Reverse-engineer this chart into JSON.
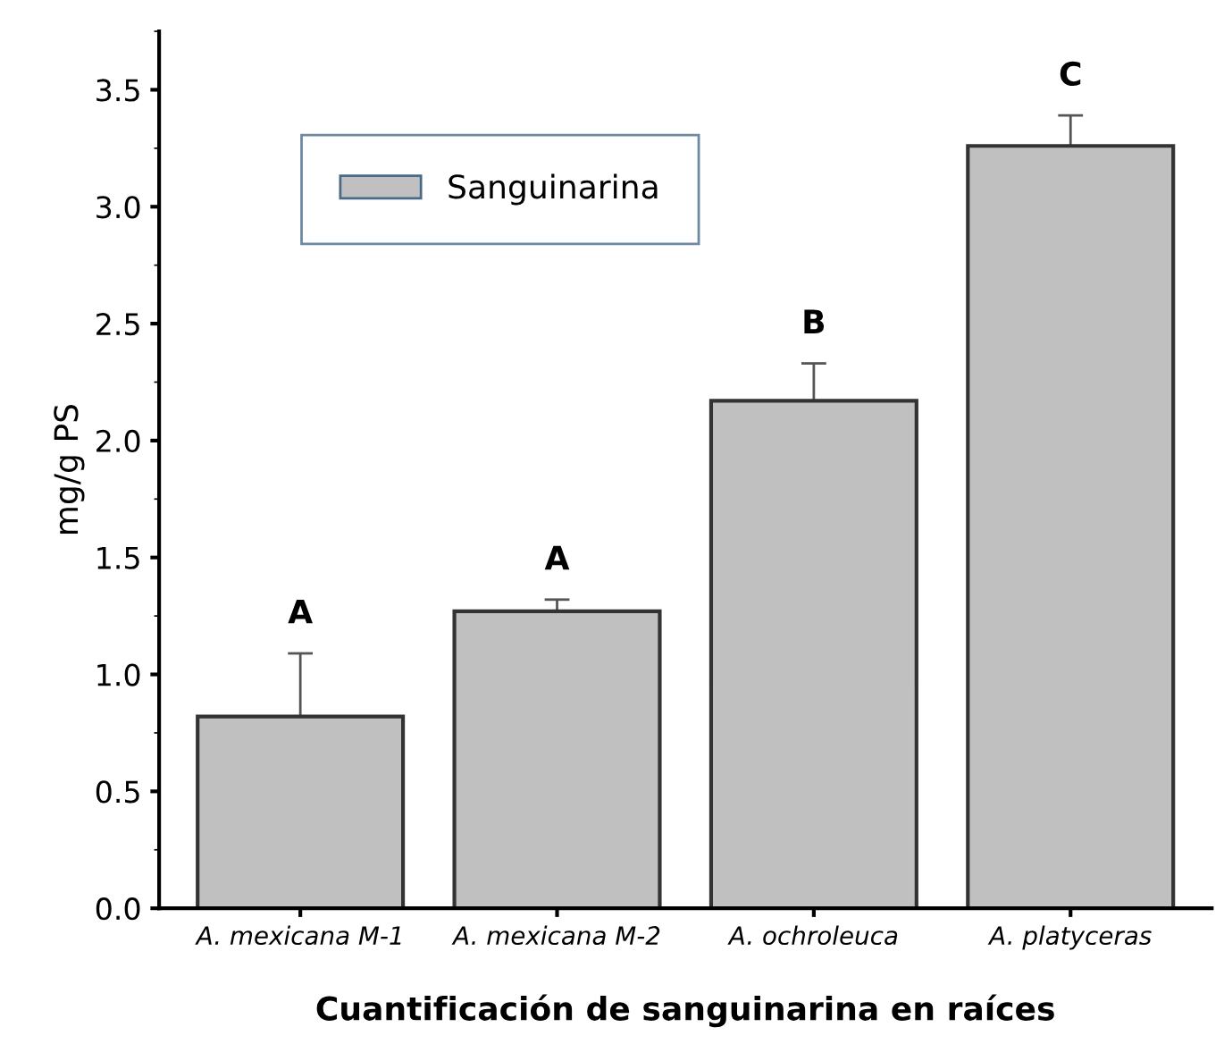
{
  "chart_data": {
    "type": "bar",
    "xlabel": "Cuantificación de sanguinarina en raíces",
    "ylabel": "mg/g PS",
    "categories": [
      "A. mexicana M-1",
      "A. mexicana M-2",
      "A. ochroleuca",
      "A. platyceras"
    ],
    "series": [
      {
        "name": "Sanguinarina",
        "color": "#c0c0c0",
        "values": [
          0.82,
          1.27,
          2.17,
          3.26
        ],
        "errors": [
          0.27,
          0.05,
          0.16,
          0.13
        ]
      }
    ],
    "annotations": [
      "A",
      "A",
      "B",
      "C"
    ],
    "ylim": [
      0,
      3.75
    ],
    "yticks": [
      {
        "value": 0,
        "label": "0.0"
      },
      {
        "value": 0.5,
        "label": "0.5"
      },
      {
        "value": 1,
        "label": "1.0"
      },
      {
        "value": 1.5,
        "label": "1.5"
      },
      {
        "value": 2,
        "label": "2.0"
      },
      {
        "value": 2.5,
        "label": "2.5"
      },
      {
        "value": 3,
        "label": "3.0"
      },
      {
        "value": 3.5,
        "label": "3.5"
      }
    ],
    "grid": false,
    "legend": "top left"
  }
}
